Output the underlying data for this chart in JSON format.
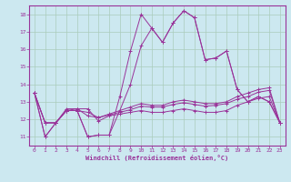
{
  "xlabel": "Windchill (Refroidissement éolien,°C)",
  "background_color": "#cce8f0",
  "grid_color": "#aaccbb",
  "line_color": "#993399",
  "xlim": [
    -0.5,
    23.5
  ],
  "ylim": [
    10.5,
    18.5
  ],
  "xticks": [
    0,
    1,
    2,
    3,
    4,
    5,
    6,
    7,
    8,
    9,
    10,
    11,
    12,
    13,
    14,
    15,
    16,
    17,
    18,
    19,
    20,
    21,
    22,
    23
  ],
  "yticks": [
    11,
    12,
    13,
    14,
    15,
    16,
    17,
    18
  ],
  "series": [
    [
      13.5,
      11.0,
      11.8,
      12.5,
      12.5,
      11.0,
      11.1,
      11.1,
      13.3,
      15.9,
      18.0,
      17.2,
      16.4,
      17.5,
      18.2,
      17.8,
      15.4,
      15.5,
      15.9,
      13.7,
      13.0,
      13.3,
      13.0,
      11.8
    ],
    [
      13.5,
      11.8,
      11.8,
      12.5,
      12.6,
      12.2,
      12.1,
      12.3,
      12.5,
      12.7,
      12.9,
      12.8,
      12.8,
      13.0,
      13.1,
      13.0,
      12.9,
      12.9,
      13.0,
      13.3,
      13.5,
      13.7,
      13.8,
      11.8
    ],
    [
      13.5,
      11.8,
      11.8,
      12.5,
      12.5,
      12.4,
      12.1,
      12.25,
      12.4,
      12.55,
      12.75,
      12.7,
      12.7,
      12.85,
      12.95,
      12.85,
      12.75,
      12.8,
      12.9,
      13.15,
      13.3,
      13.55,
      13.65,
      11.8
    ],
    [
      13.5,
      11.8,
      11.8,
      12.6,
      12.6,
      12.6,
      11.9,
      12.2,
      12.3,
      12.4,
      12.5,
      12.4,
      12.4,
      12.5,
      12.6,
      12.5,
      12.4,
      12.4,
      12.5,
      12.8,
      13.0,
      13.2,
      13.3,
      11.8
    ],
    [
      13.5,
      11.0,
      11.8,
      12.5,
      12.5,
      11.0,
      11.1,
      11.1,
      12.5,
      14.0,
      16.2,
      17.2,
      16.4,
      17.5,
      18.2,
      17.8,
      15.4,
      15.5,
      15.9,
      13.7,
      13.0,
      13.3,
      13.0,
      11.8
    ]
  ]
}
